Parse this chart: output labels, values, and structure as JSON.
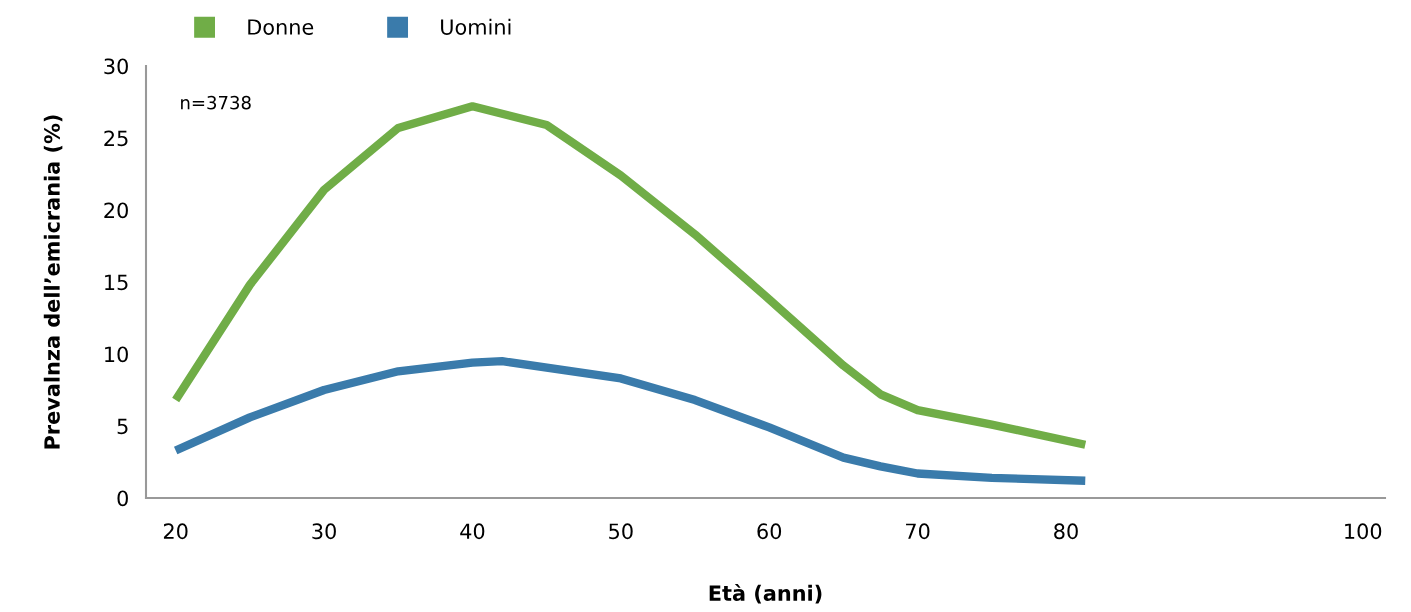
{
  "chart_data": {
    "type": "line",
    "xlabel": "Età (anni)",
    "ylabel": "Prevalnza dell’emicrania (%)",
    "annotations": [
      "n=3738"
    ],
    "series": [
      {
        "name": "Donne",
        "color": "#70ad47",
        "x": [
          20,
          25,
          30,
          35,
          40,
          45,
          50,
          55,
          60,
          65,
          67.5,
          70,
          75,
          81.3
        ],
        "values": [
          6.8,
          14.8,
          21.4,
          25.7,
          27.2,
          25.9,
          22.4,
          18.3,
          13.8,
          9.2,
          7.2,
          6.1,
          5.1,
          3.7
        ]
      },
      {
        "name": "Uomini",
        "color": "#3a7bab",
        "x": [
          20,
          25,
          30,
          35,
          40,
          42,
          50,
          55,
          60,
          65,
          67.5,
          70,
          75,
          81.3
        ],
        "values": [
          3.3,
          5.6,
          7.5,
          8.8,
          9.4,
          9.5,
          8.3,
          6.8,
          4.9,
          2.8,
          2.2,
          1.7,
          1.4,
          1.2
        ]
      }
    ],
    "xlim": [
      18,
      101.5
    ],
    "xticks": [
      20,
      30,
      40,
      50,
      60,
      70,
      80,
      100
    ],
    "ylim": [
      0,
      30
    ],
    "yticks": [
      0,
      5,
      10,
      15,
      20,
      25,
      30
    ],
    "grid": false,
    "legend": "top left",
    "line_style": "solid",
    "marker": "none"
  }
}
